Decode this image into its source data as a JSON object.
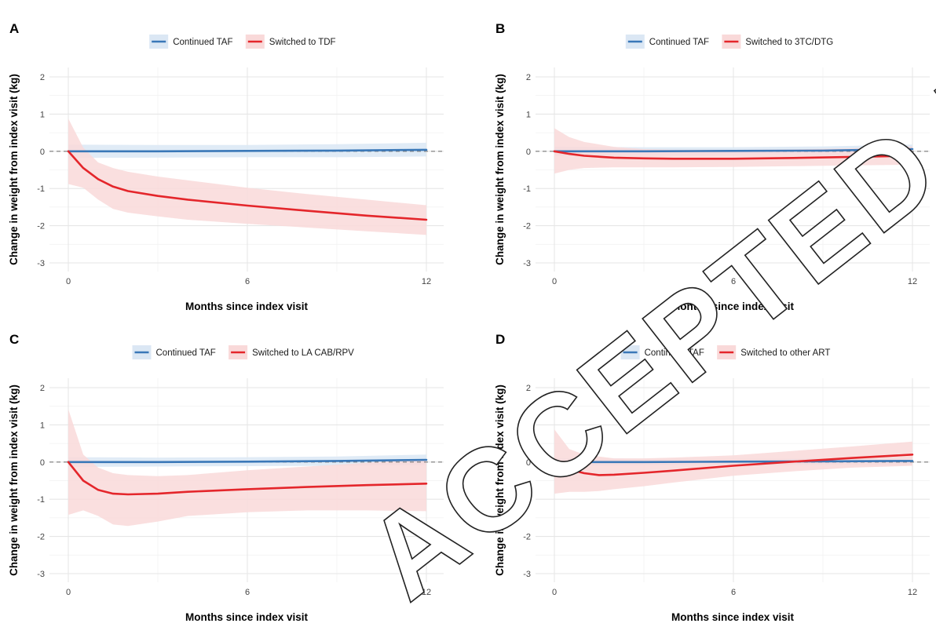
{
  "watermark": "ACCEPTED MANUSCRIPT",
  "colors": {
    "continued": "#3a78b8",
    "continued_band": "#dbe7f4",
    "switched": "#e4262b",
    "switched_band": "#f9d9d9"
  },
  "chart_data": [
    {
      "panel": "A",
      "type": "line",
      "xlabel": "Months since index visit",
      "ylabel": "Change in weight from index visit (kg)",
      "xlim": [
        0,
        12
      ],
      "ylim": [
        -3,
        2
      ],
      "xticks": [
        0,
        6,
        12
      ],
      "yticks": [
        -3,
        -2,
        -1,
        0,
        1,
        2
      ],
      "grid": true,
      "legend_position": "top",
      "reference_line": 0,
      "series": [
        {
          "name": "Continued TAF",
          "color": "continued",
          "x": [
            0,
            3,
            6,
            9,
            12
          ],
          "y": [
            0,
            0.0,
            0.01,
            0.02,
            0.04
          ],
          "ci_low": [
            -0.18,
            -0.17,
            -0.16,
            -0.16,
            -0.14
          ],
          "ci_high": [
            0.18,
            0.17,
            0.17,
            0.19,
            0.23
          ]
        },
        {
          "name": "Switched to TDF",
          "color": "switched",
          "x": [
            0,
            0.5,
            1,
            1.5,
            2,
            3,
            4,
            6,
            8,
            10,
            12
          ],
          "y": [
            0,
            -0.45,
            -0.75,
            -0.95,
            -1.07,
            -1.2,
            -1.3,
            -1.46,
            -1.6,
            -1.73,
            -1.84
          ],
          "ci_low": [
            -0.88,
            -0.98,
            -1.3,
            -1.55,
            -1.65,
            -1.75,
            -1.84,
            -1.95,
            -2.05,
            -2.15,
            -2.25
          ],
          "ci_high": [
            0.88,
            0.1,
            -0.3,
            -0.45,
            -0.55,
            -0.68,
            -0.78,
            -0.98,
            -1.15,
            -1.3,
            -1.45
          ]
        }
      ]
    },
    {
      "panel": "B",
      "type": "line",
      "xlabel": "Months since index visit",
      "ylabel": "Change in weight from index visit (kg)",
      "xlim": [
        0,
        12
      ],
      "ylim": [
        -3,
        2
      ],
      "xticks": [
        0,
        6,
        12
      ],
      "yticks": [
        -3,
        -2,
        -1,
        0,
        1,
        2
      ],
      "grid": true,
      "legend_position": "top",
      "reference_line": 0,
      "series": [
        {
          "name": "Continued TAF",
          "color": "continued",
          "x": [
            0,
            3,
            6,
            9,
            12
          ],
          "y": [
            0,
            0.0,
            0.01,
            0.02,
            0.06
          ],
          "ci_low": [
            -0.12,
            -0.11,
            -0.1,
            -0.1,
            -0.08
          ],
          "ci_high": [
            0.12,
            0.11,
            0.11,
            0.13,
            0.18
          ]
        },
        {
          "name": "Switched to 3TC/DTG",
          "color": "switched",
          "x": [
            0,
            0.5,
            1,
            2,
            3,
            4,
            6,
            8,
            10,
            12
          ],
          "y": [
            0,
            -0.07,
            -0.12,
            -0.17,
            -0.19,
            -0.2,
            -0.2,
            -0.18,
            -0.15,
            -0.12
          ],
          "ci_low": [
            -0.6,
            -0.5,
            -0.45,
            -0.43,
            -0.43,
            -0.43,
            -0.42,
            -0.4,
            -0.38,
            -0.36
          ],
          "ci_high": [
            0.62,
            0.38,
            0.25,
            0.12,
            0.06,
            0.04,
            0.04,
            0.05,
            0.08,
            0.13
          ]
        }
      ]
    },
    {
      "panel": "C",
      "type": "line",
      "xlabel": "Months since index visit",
      "ylabel": "Change in weight from index visit (kg)",
      "xlim": [
        0,
        12
      ],
      "ylim": [
        -3,
        2
      ],
      "xticks": [
        0,
        6,
        12
      ],
      "yticks": [
        -3,
        -2,
        -1,
        0,
        1,
        2
      ],
      "grid": true,
      "legend_position": "top",
      "reference_line": 0,
      "series": [
        {
          "name": "Continued TAF",
          "color": "continued",
          "x": [
            0,
            3,
            6,
            9,
            12
          ],
          "y": [
            0,
            0.0,
            0.01,
            0.03,
            0.06
          ],
          "ci_low": [
            -0.13,
            -0.12,
            -0.11,
            -0.1,
            -0.08
          ],
          "ci_high": [
            0.13,
            0.12,
            0.13,
            0.15,
            0.2
          ]
        },
        {
          "name": "Switched to LA CAB/RPV",
          "color": "switched",
          "x": [
            0,
            0.5,
            1,
            1.5,
            2,
            3,
            4,
            6,
            8,
            10,
            12
          ],
          "y": [
            0,
            -0.5,
            -0.75,
            -0.85,
            -0.87,
            -0.85,
            -0.8,
            -0.73,
            -0.67,
            -0.62,
            -0.58
          ],
          "ci_low": [
            -1.42,
            -1.3,
            -1.45,
            -1.68,
            -1.72,
            -1.6,
            -1.45,
            -1.35,
            -1.3,
            -1.3,
            -1.32
          ],
          "ci_high": [
            1.42,
            0.2,
            -0.15,
            -0.3,
            -0.35,
            -0.38,
            -0.35,
            -0.22,
            -0.12,
            -0.02,
            0.08
          ]
        }
      ]
    },
    {
      "panel": "D",
      "type": "line",
      "xlabel": "Months since index visit",
      "ylabel": "Change in weight from index visit (kg)",
      "xlim": [
        0,
        12
      ],
      "ylim": [
        -3,
        2
      ],
      "xticks": [
        0,
        6,
        12
      ],
      "yticks": [
        -3,
        -2,
        -1,
        0,
        1,
        2
      ],
      "grid": true,
      "legend_position": "top",
      "reference_line": 0,
      "series": [
        {
          "name": "Continued TAF",
          "color": "continued",
          "x": [
            0,
            3,
            6,
            9,
            12
          ],
          "y": [
            0,
            0.0,
            0.01,
            0.02,
            0.03
          ],
          "ci_low": [
            -0.1,
            -0.09,
            -0.08,
            -0.08,
            -0.07
          ],
          "ci_high": [
            0.1,
            0.09,
            0.09,
            0.1,
            0.12
          ]
        },
        {
          "name": "Switched to other ART",
          "color": "switched",
          "x": [
            0,
            0.5,
            1,
            1.5,
            2,
            3,
            4,
            6,
            8,
            10,
            12
          ],
          "y": [
            0,
            -0.2,
            -0.3,
            -0.35,
            -0.34,
            -0.29,
            -0.23,
            -0.1,
            0.01,
            0.11,
            0.2
          ],
          "ci_low": [
            -0.85,
            -0.8,
            -0.8,
            -0.78,
            -0.73,
            -0.65,
            -0.55,
            -0.37,
            -0.25,
            -0.15,
            -0.1
          ],
          "ci_high": [
            0.88,
            0.35,
            0.2,
            0.15,
            0.1,
            0.1,
            0.12,
            0.18,
            0.3,
            0.42,
            0.55
          ]
        }
      ]
    }
  ]
}
